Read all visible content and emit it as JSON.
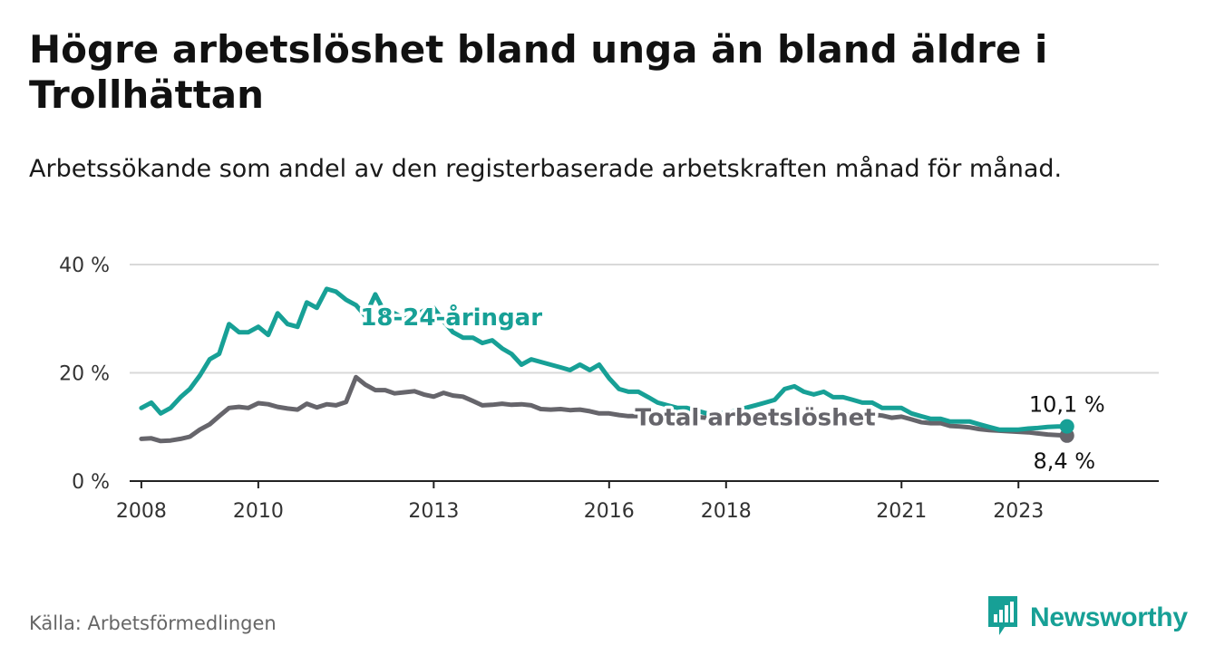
{
  "title": "Högre arbetslöshet bland unga än bland äldre i Trollhättan",
  "subtitle": "Arbetssökande som andel av den registerbaserade arbetskraften månad för månad.",
  "source": "Källa: Arbetsförmedlingen",
  "brand": "Newsworthy",
  "brand_icon": "newsworthy-logo-icon",
  "colors": {
    "youth": "#17a096",
    "total": "#66656b",
    "grid": "#d9d9d9",
    "axis": "#222222"
  },
  "chart_data": {
    "type": "line",
    "title": "Högre arbetslöshet bland unga än bland äldre i Trollhättan",
    "xlabel": "",
    "ylabel": "",
    "unit": "%",
    "ylim": [
      0,
      40
    ],
    "yticks": [
      0,
      20,
      40
    ],
    "ytick_labels": [
      "0 %",
      "20 %",
      "40 %"
    ],
    "xlim": [
      2007.8,
      2025.4
    ],
    "xticks": [
      2008,
      2010,
      2013,
      2016,
      2018,
      2021,
      2023
    ],
    "xtick_labels": [
      "2008",
      "2010",
      "2013",
      "2016",
      "2018",
      "2021",
      "2023"
    ],
    "series": [
      {
        "name": "18-24-åringar",
        "color": "#17a096",
        "end_label": "10,1 %",
        "end_value": 10.1,
        "x": [
          2008.0,
          2008.17,
          2008.33,
          2008.5,
          2008.67,
          2008.83,
          2009.0,
          2009.17,
          2009.33,
          2009.5,
          2009.67,
          2009.83,
          2010.0,
          2010.17,
          2010.33,
          2010.5,
          2010.67,
          2010.83,
          2011.0,
          2011.17,
          2011.33,
          2011.5,
          2011.67,
          2011.83,
          2012.0,
          2012.17,
          2012.33,
          2012.5,
          2012.67,
          2012.83,
          2013.0,
          2013.17,
          2013.33,
          2013.5,
          2013.67,
          2013.83,
          2014.0,
          2014.17,
          2014.33,
          2014.5,
          2014.67,
          2014.83,
          2015.0,
          2015.17,
          2015.33,
          2015.5,
          2015.67,
          2015.83,
          2016.0,
          2016.17,
          2016.33,
          2016.5,
          2016.67,
          2016.83,
          2017.0,
          2017.17,
          2017.33,
          2017.5,
          2017.67,
          2017.83,
          2018.0,
          2018.17,
          2018.33,
          2018.5,
          2018.67,
          2018.83,
          2019.0,
          2019.17,
          2019.33,
          2019.5,
          2019.67,
          2019.83,
          2020.0,
          2020.17,
          2020.33,
          2020.5,
          2020.67,
          2020.83,
          2021.0,
          2021.17,
          2021.33,
          2021.5,
          2021.67,
          2021.83,
          2022.0,
          2022.17,
          2022.33,
          2022.5,
          2022.67,
          2022.83,
          2023.0,
          2023.17,
          2023.33,
          2023.5,
          2023.67,
          2023.83
        ],
        "values": [
          13.5,
          14.5,
          12.5,
          13.5,
          15.5,
          17.0,
          19.5,
          22.5,
          23.5,
          29.0,
          27.5,
          27.5,
          28.5,
          27.0,
          31.0,
          29.0,
          28.5,
          33.0,
          32.0,
          35.5,
          35.0,
          33.5,
          32.5,
          30.5,
          34.5,
          31.0,
          31.0,
          30.0,
          30.5,
          31.5,
          32.0,
          29.5,
          27.5,
          26.5,
          26.5,
          25.5,
          26.0,
          24.5,
          23.5,
          21.5,
          22.5,
          22.0,
          21.5,
          21.0,
          20.5,
          21.5,
          20.5,
          21.5,
          19.0,
          17.0,
          16.5,
          16.5,
          15.5,
          14.5,
          14.0,
          13.5,
          13.5,
          13.0,
          12.5,
          12.5,
          12.5,
          13.0,
          13.5,
          14.0,
          14.5,
          15.0,
          17.0,
          17.5,
          16.5,
          16.0,
          16.5,
          15.5,
          15.5,
          15.0,
          14.5,
          14.5,
          13.5,
          13.5,
          13.5,
          12.5,
          12.0,
          11.5,
          11.5,
          11.0,
          11.0,
          11.0,
          10.5,
          10.0,
          9.5,
          9.5,
          9.5,
          9.7,
          9.8,
          10.0,
          10.1,
          10.1
        ]
      },
      {
        "name": "Total arbetslöshet",
        "color": "#66656b",
        "end_label": "8,4 %",
        "end_value": 8.4,
        "x": [
          2008.0,
          2008.17,
          2008.33,
          2008.5,
          2008.67,
          2008.83,
          2009.0,
          2009.17,
          2009.33,
          2009.5,
          2009.67,
          2009.83,
          2010.0,
          2010.17,
          2010.33,
          2010.5,
          2010.67,
          2010.83,
          2011.0,
          2011.17,
          2011.33,
          2011.5,
          2011.67,
          2011.83,
          2012.0,
          2012.17,
          2012.33,
          2012.5,
          2012.67,
          2012.83,
          2013.0,
          2013.17,
          2013.33,
          2013.5,
          2013.67,
          2013.83,
          2014.0,
          2014.17,
          2014.33,
          2014.5,
          2014.67,
          2014.83,
          2015.0,
          2015.17,
          2015.33,
          2015.5,
          2015.67,
          2015.83,
          2016.0,
          2016.17,
          2016.33,
          2016.5,
          2016.67,
          2016.83,
          2017.0,
          2017.17,
          2017.33,
          2017.5,
          2017.67,
          2017.83,
          2018.0,
          2018.17,
          2018.33,
          2018.5,
          2018.67,
          2018.83,
          2019.0,
          2019.17,
          2019.33,
          2019.5,
          2019.67,
          2019.83,
          2020.0,
          2020.17,
          2020.33,
          2020.5,
          2020.67,
          2020.83,
          2021.0,
          2021.17,
          2021.33,
          2021.5,
          2021.67,
          2021.83,
          2022.0,
          2022.17,
          2022.33,
          2022.5,
          2022.67,
          2022.83,
          2023.0,
          2023.17,
          2023.33,
          2023.5,
          2023.67,
          2023.83
        ],
        "values": [
          7.8,
          7.9,
          7.4,
          7.5,
          7.8,
          8.2,
          9.5,
          10.5,
          12.0,
          13.5,
          13.7,
          13.5,
          14.4,
          14.2,
          13.7,
          13.4,
          13.2,
          14.3,
          13.6,
          14.2,
          14.0,
          14.6,
          19.2,
          17.8,
          16.8,
          16.8,
          16.2,
          16.4,
          16.6,
          16.0,
          15.6,
          16.3,
          15.8,
          15.6,
          14.8,
          14.0,
          14.1,
          14.3,
          14.1,
          14.2,
          14.0,
          13.3,
          13.2,
          13.3,
          13.1,
          13.2,
          12.9,
          12.5,
          12.5,
          12.2,
          12.0,
          12.0,
          11.8,
          11.8,
          11.7,
          11.8,
          11.9,
          11.8,
          11.7,
          11.9,
          12.0,
          12.2,
          12.0,
          12.2,
          12.4,
          12.4,
          12.4,
          12.2,
          12.0,
          12.3,
          12.6,
          12.6,
          12.3,
          12.3,
          12.5,
          12.3,
          12.1,
          11.7,
          11.9,
          11.4,
          10.9,
          10.7,
          10.7,
          10.2,
          10.1,
          9.9,
          9.6,
          9.4,
          9.3,
          9.2,
          9.1,
          9.0,
          8.8,
          8.6,
          8.5,
          8.4
        ]
      }
    ],
    "annotations": [
      {
        "series": "18-24-åringar",
        "text": "18-24-åringar",
        "x": 2013.3,
        "y": 28.8
      },
      {
        "series": "Total arbetslöshet",
        "text": "Total arbetslöshet",
        "x": 2018.5,
        "y": 10.3
      }
    ]
  }
}
